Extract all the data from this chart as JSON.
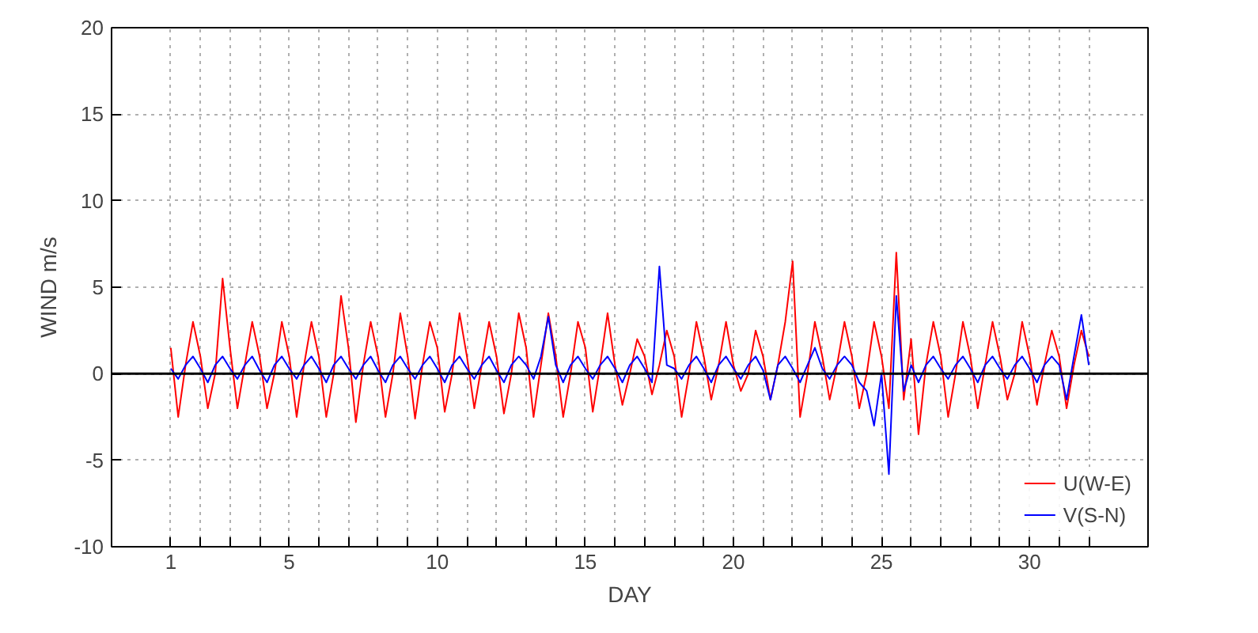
{
  "chart_data": {
    "type": "line",
    "xlabel": "DAY",
    "ylabel": "WIND m/s",
    "xlim": [
      -1,
      34
    ],
    "ylim": [
      -10,
      20
    ],
    "xticks": [
      1,
      {
        "value": 2,
        "label": null
      },
      {
        "value": 3,
        "label": null
      },
      {
        "value": 4,
        "label": null
      },
      5,
      {
        "value": 6,
        "label": null
      },
      {
        "value": 7,
        "label": null
      },
      {
        "value": 8,
        "label": null
      },
      {
        "value": 9,
        "label": null
      },
      10,
      {
        "value": 11,
        "label": null
      },
      {
        "value": 12,
        "label": null
      },
      {
        "value": 13,
        "label": null
      },
      {
        "value": 14,
        "label": null
      },
      15,
      {
        "value": 16,
        "label": null
      },
      {
        "value": 17,
        "label": null
      },
      {
        "value": 18,
        "label": null
      },
      {
        "value": 19,
        "label": null
      },
      20,
      {
        "value": 21,
        "label": null
      },
      {
        "value": 22,
        "label": null
      },
      {
        "value": 23,
        "label": null
      },
      {
        "value": 24,
        "label": null
      },
      25,
      {
        "value": 26,
        "label": null
      },
      {
        "value": 27,
        "label": null
      },
      {
        "value": 28,
        "label": null
      },
      {
        "value": 29,
        "label": null
      },
      30,
      {
        "value": 31,
        "label": null
      },
      {
        "value": 32,
        "label": null
      }
    ],
    "yticks": [
      -10,
      -5,
      0,
      5,
      10,
      15,
      20
    ],
    "grid": true,
    "legend": "bottom right",
    "line_style": "solid",
    "marker": "none",
    "ref_lines": [
      {
        "axis": "y",
        "value": 0,
        "color": "#000000"
      }
    ],
    "x": [
      1,
      1.25,
      1.5,
      1.75,
      2,
      2.25,
      2.5,
      2.75,
      3,
      3.25,
      3.5,
      3.75,
      4,
      4.25,
      4.5,
      4.75,
      5,
      5.25,
      5.5,
      5.75,
      6,
      6.25,
      6.5,
      6.75,
      7,
      7.25,
      7.5,
      7.75,
      8,
      8.25,
      8.5,
      8.75,
      9,
      9.25,
      9.5,
      9.75,
      10,
      10.25,
      10.5,
      10.75,
      11,
      11.25,
      11.5,
      11.75,
      12,
      12.25,
      12.5,
      12.75,
      13,
      13.25,
      13.5,
      13.75,
      14,
      14.25,
      14.5,
      14.75,
      15,
      15.25,
      15.5,
      15.75,
      16,
      16.25,
      16.5,
      16.75,
      17,
      17.25,
      17.5,
      17.75,
      18,
      18.25,
      18.5,
      18.75,
      19,
      19.25,
      19.5,
      19.75,
      20,
      20.25,
      20.5,
      20.75,
      21,
      21.25,
      21.5,
      21.75,
      22,
      22.25,
      22.5,
      22.75,
      23,
      23.25,
      23.5,
      23.75,
      24,
      24.25,
      24.5,
      24.75,
      25,
      25.25,
      25.5,
      25.75,
      26,
      26.25,
      26.5,
      26.75,
      27,
      27.25,
      27.5,
      27.75,
      28,
      28.25,
      28.5,
      28.75,
      29,
      29.25,
      29.5,
      29.75,
      30,
      30.25,
      30.5,
      30.75,
      31,
      31.25,
      31.5,
      31.75,
      32
    ],
    "series": [
      {
        "name": "U(W-E)",
        "color": "#ff0000",
        "values": [
          1.5,
          -2.5,
          0.5,
          3,
          1,
          -2,
          0,
          5.5,
          1.5,
          -2,
          0.5,
          3,
          1,
          -2,
          0,
          3,
          1,
          -2.5,
          0.5,
          3,
          1,
          -2.5,
          0,
          4.5,
          1.5,
          -2.8,
          0.5,
          3,
          1,
          -2.5,
          0,
          3.5,
          1,
          -2.6,
          0.5,
          3,
          1.5,
          -2.2,
          0,
          3.5,
          1,
          -2,
          0.5,
          3,
          1,
          -2.3,
          0,
          3.5,
          1.5,
          -2.5,
          0.5,
          3.5,
          1,
          -2.5,
          0,
          3,
          1.5,
          -2.2,
          0.5,
          3.5,
          0.5,
          -1.8,
          0,
          2,
          1,
          -1.2,
          0.5,
          2.5,
          1,
          -2.5,
          0,
          3,
          1,
          -1.5,
          0.5,
          3,
          0.5,
          -1,
          0,
          2.5,
          1,
          -1.5,
          0.5,
          3,
          6.5,
          -2.5,
          0,
          3,
          1,
          -1.5,
          0.5,
          3,
          1,
          -2,
          0,
          3,
          1,
          -2,
          7,
          -1.5,
          2,
          -3.5,
          0.5,
          3,
          1,
          -2.5,
          0,
          3,
          1,
          -2,
          0.5,
          3,
          1,
          -1.5,
          0,
          3,
          1,
          -1.8,
          0.5,
          2.5,
          1,
          -2,
          0.5,
          2.5,
          1
        ]
      },
      {
        "name": "V(S-N)",
        "color": "#0000ff",
        "values": [
          0.3,
          -0.3,
          0.5,
          1,
          0.3,
          -0.5,
          0.5,
          1,
          0.3,
          -0.3,
          0.5,
          1,
          0.2,
          -0.5,
          0.5,
          1,
          0.3,
          -0.3,
          0.5,
          1,
          0.3,
          -0.5,
          0.5,
          1,
          0.3,
          -0.3,
          0.5,
          1,
          0.2,
          -0.5,
          0.5,
          1,
          0.3,
          -0.3,
          0.5,
          1,
          0.3,
          -0.5,
          0.5,
          1,
          0.3,
          -0.3,
          0.5,
          1,
          0.2,
          -0.5,
          0.5,
          1,
          0.5,
          -0.3,
          1,
          3.3,
          0.5,
          -0.5,
          0.5,
          1,
          0.3,
          -0.3,
          0.5,
          1,
          0.3,
          -0.5,
          0.5,
          1,
          0.3,
          -0.5,
          6.2,
          0.5,
          0.3,
          -0.3,
          0.5,
          1,
          0.3,
          -0.5,
          0.5,
          1,
          0.3,
          -0.3,
          0.5,
          1,
          0.2,
          -1.5,
          0.5,
          1,
          0.3,
          -0.5,
          0.5,
          1.5,
          0.3,
          -0.3,
          0.5,
          1,
          0.5,
          -0.5,
          -1,
          -3,
          0,
          -5.8,
          4.5,
          -1,
          0.5,
          -0.5,
          0.5,
          1,
          0.3,
          -0.3,
          0.5,
          1,
          0.3,
          -0.5,
          0.5,
          1,
          0.3,
          -0.3,
          0.5,
          1,
          0.3,
          -0.5,
          0.5,
          1,
          0.5,
          -1.5,
          1,
          3.4,
          0.5
        ]
      }
    ]
  }
}
